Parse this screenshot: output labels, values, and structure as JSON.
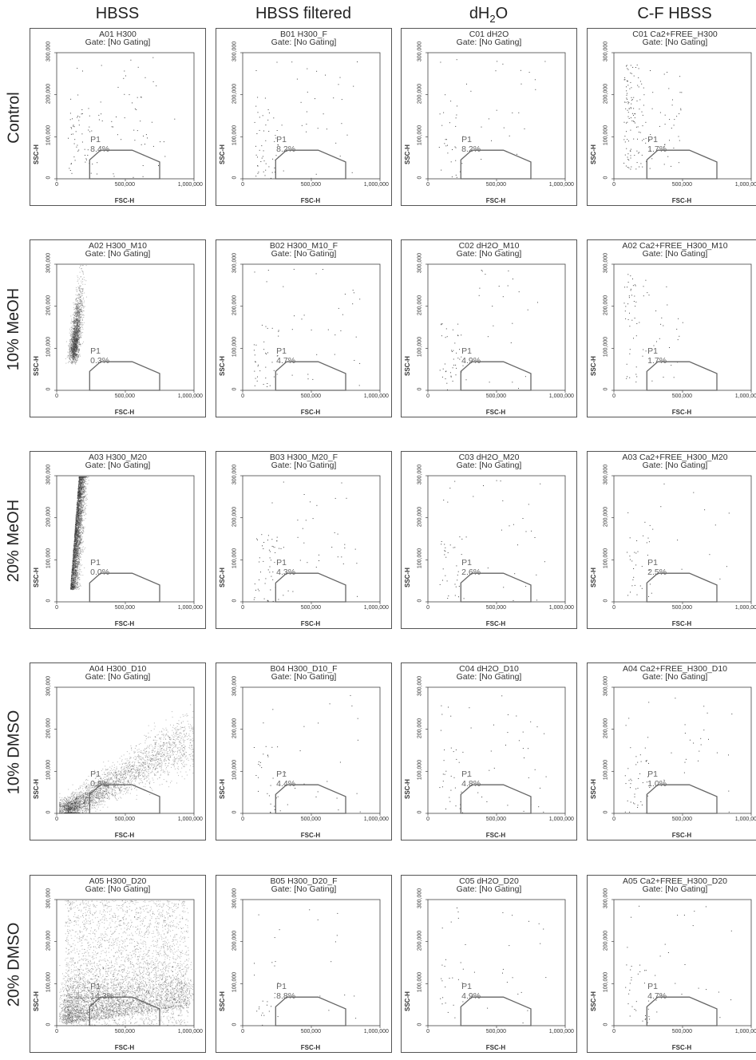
{
  "columns": [
    "HBSS",
    "HBSS filtered",
    "dH2O",
    "C-F HBSS"
  ],
  "rows": [
    "Control",
    "10% MeOH",
    "20% MeOH",
    "10% DMSO",
    "20% DMSO"
  ],
  "colors": {
    "dots": "#333333",
    "gate": "#666666",
    "axis": "#444444"
  },
  "chart_data": {
    "type": "scatter",
    "xlabel": "FSC-H",
    "ylabel": "SSC-H",
    "xlim": [
      0,
      1000000
    ],
    "ylim": [
      0,
      300000
    ],
    "xticks": [
      "0",
      "500,000",
      "1,000,000"
    ],
    "yticks": [
      "0",
      "100,000",
      "200,000",
      "300,000"
    ],
    "gate_subtitle": "Gate: [No Gating]",
    "gate_name": "P1",
    "gate_polygon": [
      [
        240000,
        0
      ],
      [
        240000,
        45000
      ],
      [
        320000,
        68000
      ],
      [
        550000,
        68000
      ],
      [
        750000,
        40000
      ],
      [
        750000,
        0
      ]
    ],
    "panels": [
      {
        "title": "A01 H300",
        "pct": "8.4%",
        "n": 110,
        "pattern": "sparse"
      },
      {
        "title": "B01 H300_F",
        "pct": "8.2%",
        "n": 85,
        "pattern": "sparse"
      },
      {
        "title": "C01 dH2O",
        "pct": "8.2%",
        "n": 55,
        "pattern": "sparse"
      },
      {
        "title": "C01 Ca2+FREE_H300",
        "pct": "1.7%",
        "n": 160,
        "pattern": "sparse_col"
      },
      {
        "title": "A02 H300_M10",
        "pct": "0.3%",
        "n": 1800,
        "pattern": "vertical"
      },
      {
        "title": "B02 H300_M10_F",
        "pct": "4.7%",
        "n": 70,
        "pattern": "sparse"
      },
      {
        "title": "C02 dH2O_M10",
        "pct": "4.9%",
        "n": 65,
        "pattern": "sparse"
      },
      {
        "title": "A02 Ca2+FREE_H300_M10",
        "pct": "1.7%",
        "n": 70,
        "pattern": "sparse_col"
      },
      {
        "title": "A03 H300_M20",
        "pct": "0.0%",
        "n": 3600,
        "pattern": "vertical_dense"
      },
      {
        "title": "B03 H300_M20_F",
        "pct": "4.3%",
        "n": 85,
        "pattern": "sparse"
      },
      {
        "title": "C03 dH2O_M20",
        "pct": "2.6%",
        "n": 60,
        "pattern": "sparse"
      },
      {
        "title": "A03 Ca2+FREE_H300_M20",
        "pct": "2.5%",
        "n": 45,
        "pattern": "sparse"
      },
      {
        "title": "A04 H300_D10",
        "pct": "0.8%",
        "n": 3200,
        "pattern": "diagonal"
      },
      {
        "title": "B04 H300_D10_F",
        "pct": "4.4%",
        "n": 50,
        "pattern": "sparse"
      },
      {
        "title": "C04 dH2O_D10",
        "pct": "4.8%",
        "n": 65,
        "pattern": "sparse"
      },
      {
        "title": "A04 Ca2+FREE_H300_D10",
        "pct": "1.0%",
        "n": 70,
        "pattern": "sparse"
      },
      {
        "title": "A05 H300_D20",
        "pct": "14.3%",
        "n": 6000,
        "pattern": "spread"
      },
      {
        "title": "B05 H300_D20_F",
        "pct": "8.8%",
        "n": 35,
        "pattern": "sparse"
      },
      {
        "title": "C05 dH2O_D20",
        "pct": "4.9%",
        "n": 45,
        "pattern": "sparse"
      },
      {
        "title": "A05 Ca2+FREE_H300_D20",
        "pct": "4.7%",
        "n": 55,
        "pattern": "sparse"
      }
    ]
  }
}
